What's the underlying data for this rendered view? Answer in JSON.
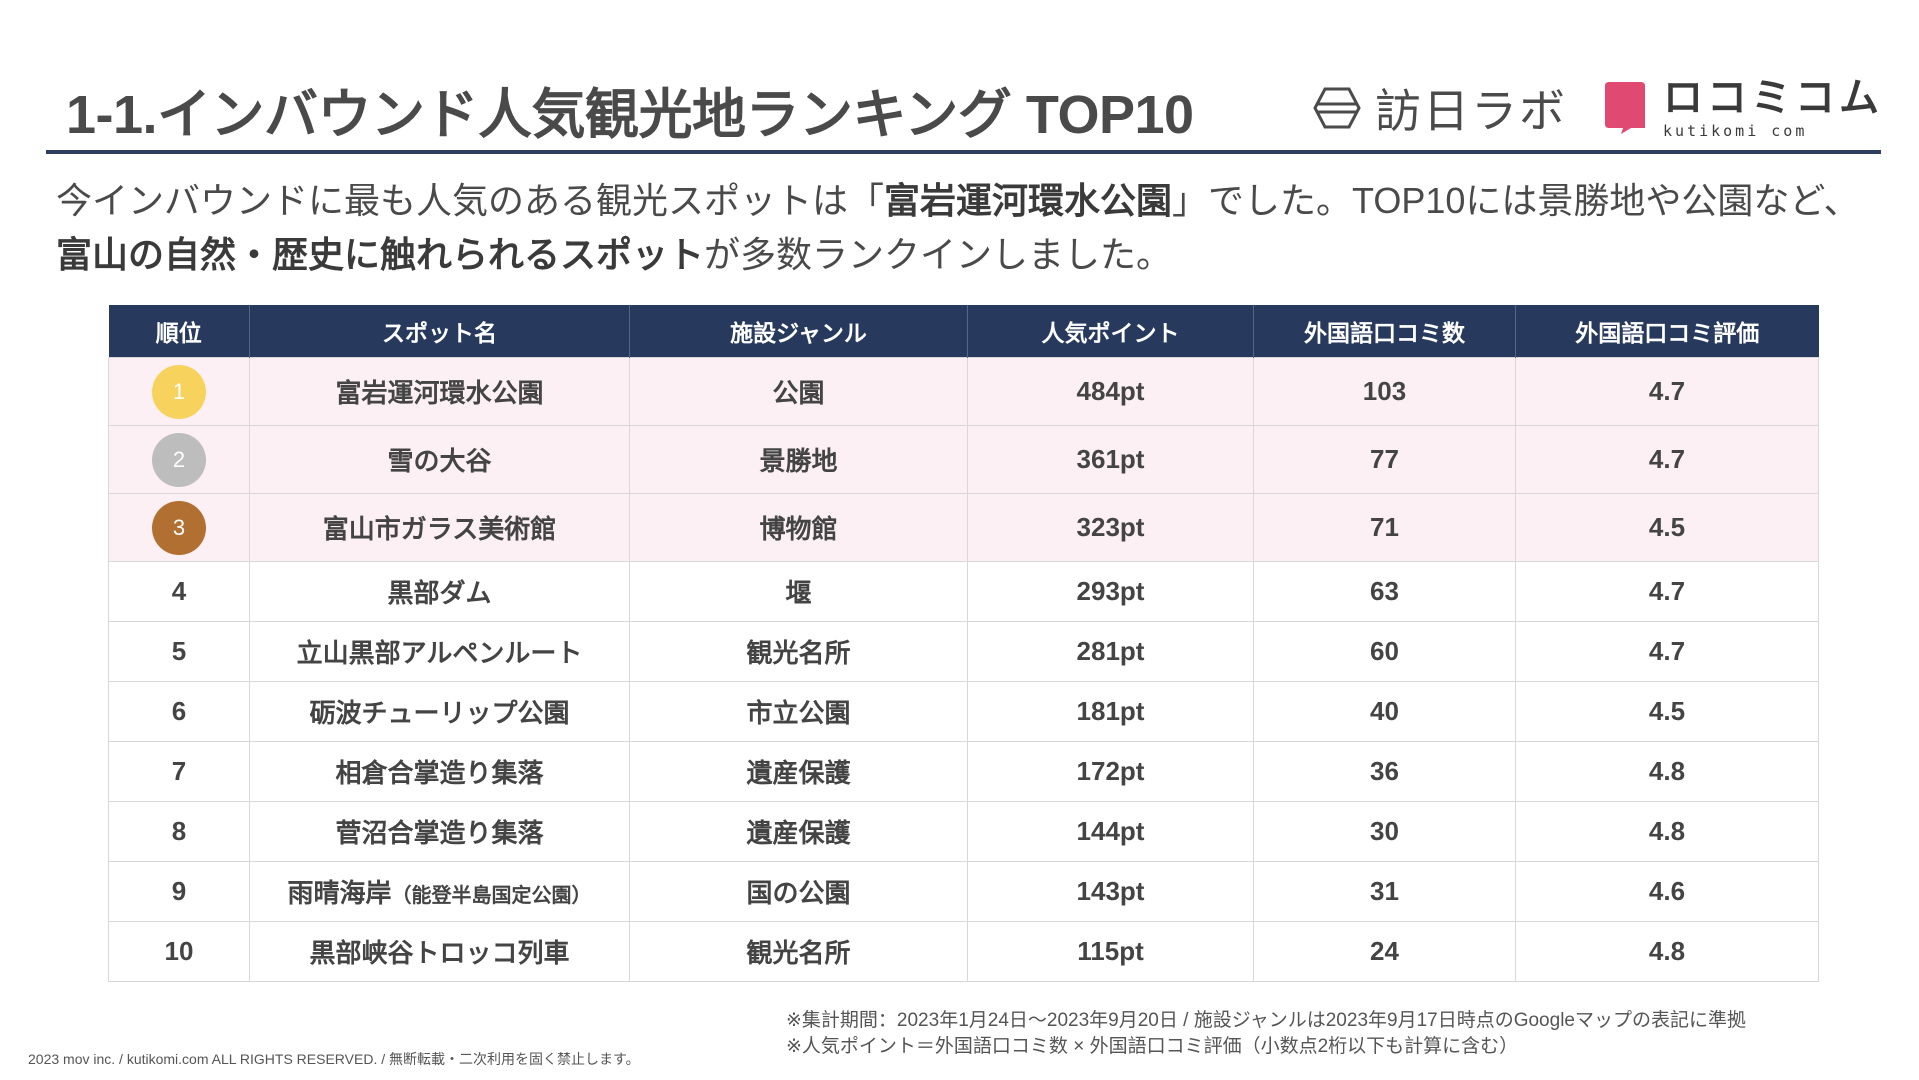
{
  "header": {
    "title": "1-1.インバウンド人気観光地ランキング TOP10",
    "logo1_name": "訪日ラボ",
    "logo2_jp": "ロコミコム",
    "logo2_en": "kutikomi com"
  },
  "intro": {
    "line1_a": "今インバウンドに最も人気のある観光スポットは「",
    "line1_bold": "富岩運河環水公園",
    "line1_b": "」でした。TOP10には景勝地や公園など、",
    "line2_bold": "富山の自然・歴史に触れられるスポット",
    "line2_b": "が多数ランクインしました。"
  },
  "table": {
    "headers": [
      "順位",
      "スポット名",
      "施設ジャンル",
      "人気ポイント",
      "外国語口コミ数",
      "外国語口コミ評価"
    ],
    "top_rows": [
      {
        "rank": "1",
        "name": "富岩運河環水公園",
        "genre": "公園",
        "points": "484pt",
        "reviews": "103",
        "rating": "4.7"
      },
      {
        "rank": "2",
        "name": "雪の大谷",
        "genre": "景勝地",
        "points": "361pt",
        "reviews": "77",
        "rating": "4.7"
      },
      {
        "rank": "3",
        "name": "富山市ガラス美術館",
        "genre": "博物館",
        "points": "323pt",
        "reviews": "71",
        "rating": "4.5"
      }
    ],
    "rows": [
      {
        "rank": "4",
        "name": "黒部ダム",
        "genre": "堰",
        "points": "293pt",
        "reviews": "63",
        "rating": "4.7"
      },
      {
        "rank": "5",
        "name": "立山黒部アルペンルート",
        "genre": "観光名所",
        "points": "281pt",
        "reviews": "60",
        "rating": "4.7"
      },
      {
        "rank": "6",
        "name": "砺波チューリップ公園",
        "genre": "市立公園",
        "points": "181pt",
        "reviews": "40",
        "rating": "4.5"
      },
      {
        "rank": "7",
        "name": "相倉合掌造り集落",
        "genre": "遺産保護",
        "points": "172pt",
        "reviews": "36",
        "rating": "4.8"
      },
      {
        "rank": "8",
        "name": "菅沼合掌造り集落",
        "genre": "遺産保護",
        "points": "144pt",
        "reviews": "30",
        "rating": "4.8"
      },
      {
        "rank": "9",
        "name": "雨晴海岸",
        "name_small": "（能登半島国定公園）",
        "genre": "国の公園",
        "points": "143pt",
        "reviews": "31",
        "rating": "4.6"
      },
      {
        "rank": "10",
        "name": "黒部峡谷トロッコ列車",
        "genre": "観光名所",
        "points": "115pt",
        "reviews": "24",
        "rating": "4.8"
      }
    ]
  },
  "footer": {
    "note1": "※集計期間：2023年1月24日～2023年9月20日 / 施設ジャンルは2023年9月17日時点のGoogleマップの表記に準拠",
    "note2": "※人気ポイント＝外国語口コミ数 × 外国語口コミ評価（小数点2桁以下も計算に含む）",
    "copyright": "2023 mov inc. / kutikomi.com ALL RIGHTS RESERVED. / 無断転載・二次利用を固く禁止します。"
  },
  "colors": {
    "header_navy": "#273a5e",
    "highlight_pink": "#fcf0f5",
    "gold": "#f7d35d",
    "silver": "#bdbdbd",
    "bronze": "#b26f32",
    "logo_pink": "#e04a72"
  },
  "icons": [
    "hexagon-logo-icon",
    "speech-bubble-logo-icon"
  ]
}
